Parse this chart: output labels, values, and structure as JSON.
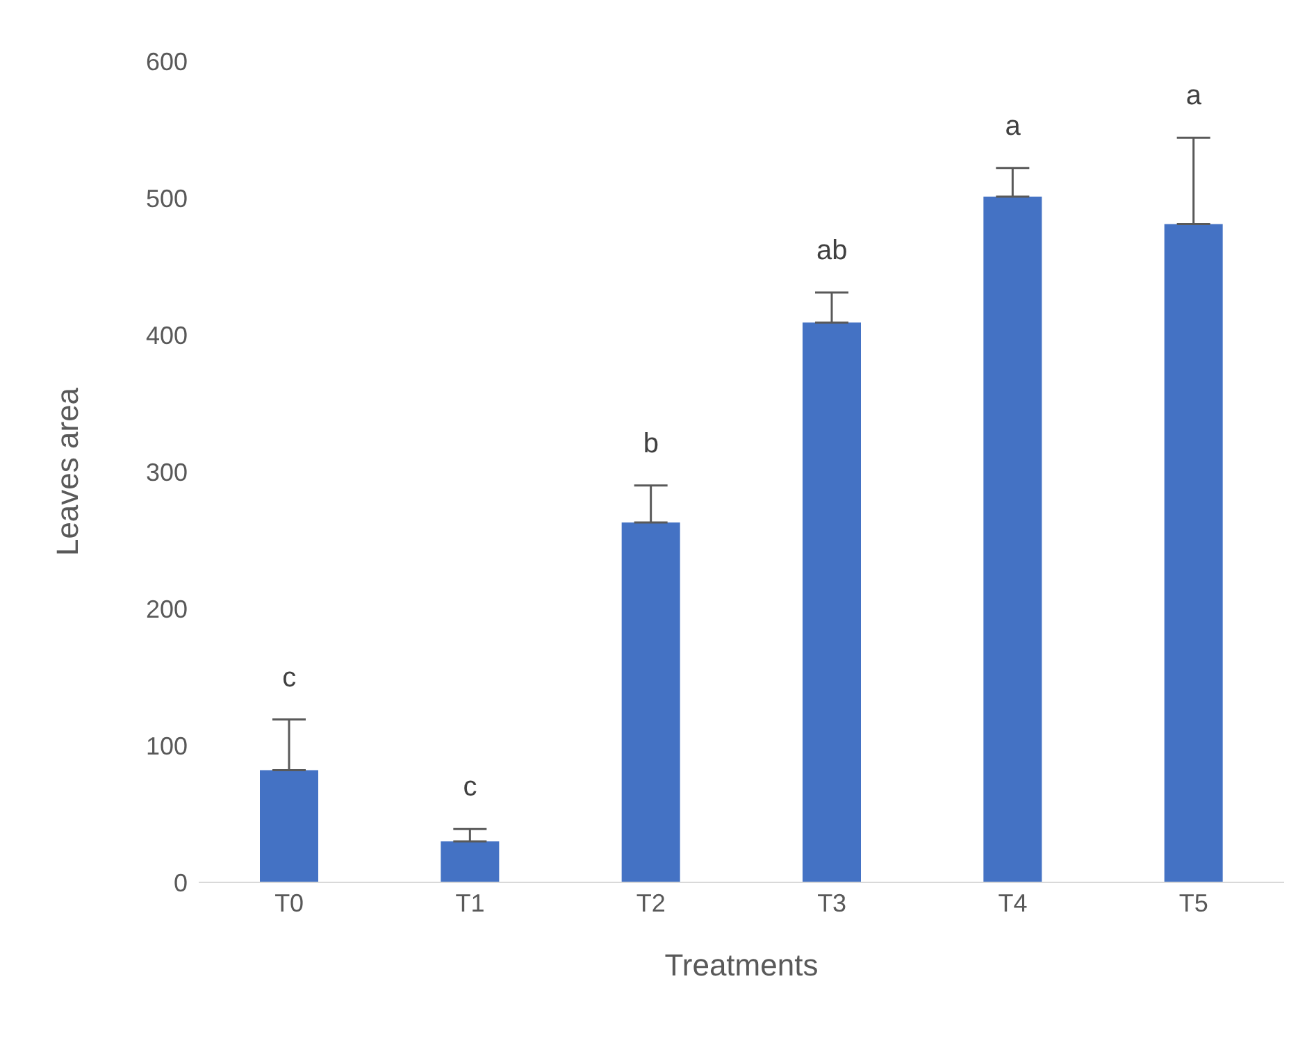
{
  "chart_data": {
    "type": "bar",
    "xlabel": "Treatments",
    "ylabel": "Leaves area",
    "categories": [
      "T0",
      "T1",
      "T2",
      "T3",
      "T4",
      "T5"
    ],
    "values": [
      82,
      30,
      263,
      409,
      501,
      481
    ],
    "errors": [
      [
        82,
        119
      ],
      [
        30,
        39
      ],
      [
        263,
        290
      ],
      [
        409,
        431
      ],
      [
        501,
        522
      ],
      [
        481,
        544
      ]
    ],
    "color": "#4472c4",
    "ylim": [
      0,
      600
    ],
    "yticks": [
      0,
      100,
      200,
      300,
      400,
      500,
      600
    ],
    "grid": false,
    "annotations": [
      "c",
      "c",
      "b",
      "ab",
      "a",
      "a"
    ]
  }
}
